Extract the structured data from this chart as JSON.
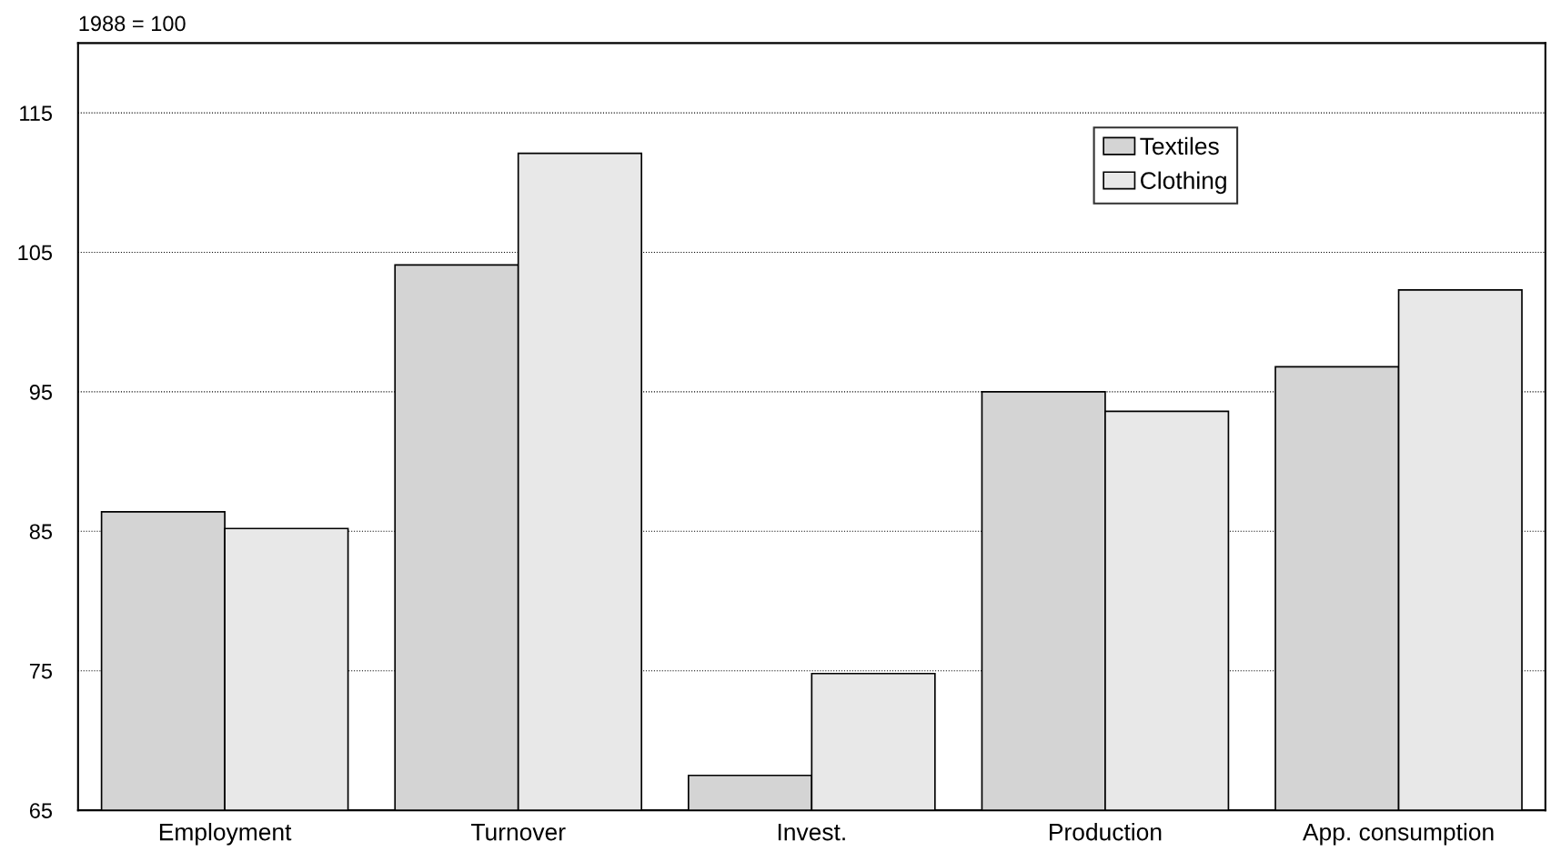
{
  "chart_data": {
    "type": "bar",
    "ylabel": "1988 = 100",
    "categories": [
      "Employment",
      "Turnover",
      "Invest.",
      "Production",
      "App. consumption"
    ],
    "series": [
      {
        "name": "Textiles",
        "color": "#d4d4d4",
        "values": [
          86.4,
          104.1,
          67.5,
          95.0,
          96.8
        ]
      },
      {
        "name": "Clothing",
        "color": "#e8e8e8",
        "values": [
          85.2,
          112.1,
          74.8,
          93.6,
          102.3
        ]
      }
    ],
    "ylim": [
      65,
      120
    ],
    "yticks": [
      65,
      75,
      85,
      95,
      105,
      115
    ],
    "grid": "y",
    "legend": "top right",
    "line_style": "dotted"
  }
}
